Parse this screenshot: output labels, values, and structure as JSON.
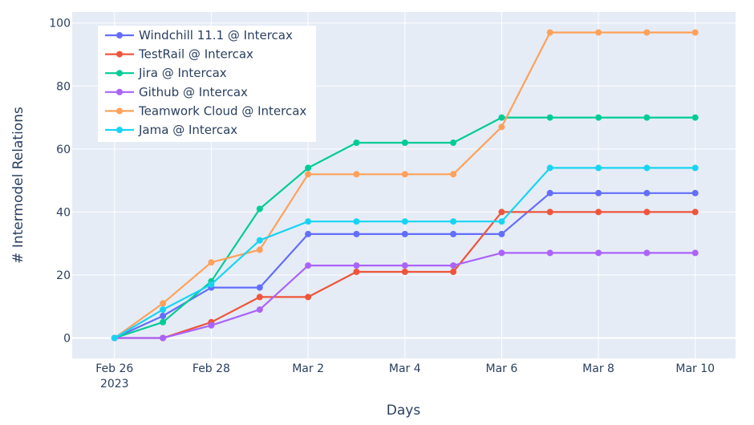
{
  "chart_data": {
    "type": "line",
    "xlabel": "Days",
    "ylabel": "# Intermodel Relations",
    "x": [
      "2023-02-26",
      "2023-02-27",
      "2023-02-28",
      "2023-03-01",
      "2023-03-02",
      "2023-03-03",
      "2023-03-04",
      "2023-03-05",
      "2023-03-06",
      "2023-03-07",
      "2023-03-08",
      "2023-03-09",
      "2023-03-10"
    ],
    "xticks": [
      {
        "date": "2023-02-26",
        "label": "Feb 26",
        "sublabel": "2023"
      },
      {
        "date": "2023-02-28",
        "label": "Feb 28",
        "sublabel": ""
      },
      {
        "date": "2023-03-02",
        "label": "Mar 2",
        "sublabel": ""
      },
      {
        "date": "2023-03-04",
        "label": "Mar 4",
        "sublabel": ""
      },
      {
        "date": "2023-03-06",
        "label": "Mar 6",
        "sublabel": ""
      },
      {
        "date": "2023-03-08",
        "label": "Mar 8",
        "sublabel": ""
      },
      {
        "date": "2023-03-10",
        "label": "Mar 10",
        "sublabel": ""
      }
    ],
    "xlim": [
      "2023-02-25 03:00",
      "2023-03-10 20:00"
    ],
    "ylim": [
      -6.5,
      103.5
    ],
    "yticks": [
      0,
      20,
      40,
      60,
      80,
      100
    ],
    "grid": true,
    "legend": "top-left",
    "series": [
      {
        "name": "Windchill 11.1 @ Intercax",
        "color": "#636efa",
        "values": [
          0,
          7,
          16,
          16,
          33,
          33,
          33,
          33,
          33,
          46,
          46,
          46,
          46
        ]
      },
      {
        "name": "TestRail @ Intercax",
        "color": "#ef553b",
        "values": [
          0,
          0,
          5,
          13,
          13,
          21,
          21,
          21,
          40,
          40,
          40,
          40,
          40
        ]
      },
      {
        "name": "Jira @ Intercax",
        "color": "#00cc96",
        "values": [
          0,
          5,
          18,
          41,
          54,
          62,
          62,
          62,
          70,
          70,
          70,
          70,
          70
        ]
      },
      {
        "name": "Github @ Intercax",
        "color": "#ab63fa",
        "values": [
          0,
          0,
          4,
          9,
          23,
          23,
          23,
          23,
          27,
          27,
          27,
          27,
          27
        ]
      },
      {
        "name": "Teamwork Cloud @ Intercax",
        "color": "#ffa15a",
        "values": [
          0,
          11,
          24,
          28,
          52,
          52,
          52,
          52,
          67,
          97,
          97,
          97,
          97
        ]
      },
      {
        "name": "Jama @ Intercax",
        "color": "#19d3f3",
        "values": [
          0,
          9,
          17,
          31,
          37,
          37,
          37,
          37,
          37,
          54,
          54,
          54,
          54
        ]
      }
    ]
  }
}
